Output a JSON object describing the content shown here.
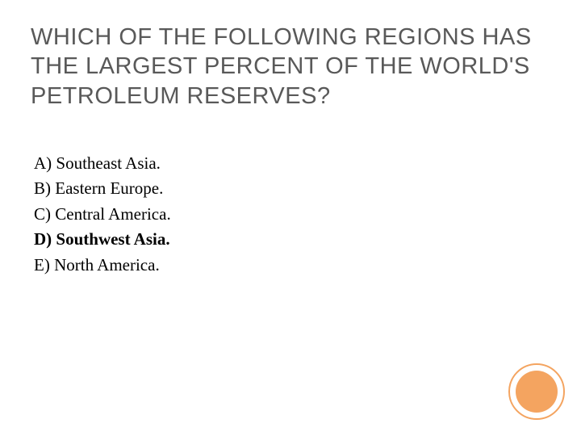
{
  "slide": {
    "title": "WHICH OF THE FOLLOWING REGIONS HAS THE LARGEST PERCENT OF THE WORLD'S PETROLEUM RESERVES?",
    "title_color": "#595959",
    "title_fontsize": 29,
    "title_font": "Century Gothic",
    "options": [
      {
        "label": "A) Southeast Asia.",
        "correct": false
      },
      {
        "label": "B) Eastern Europe.",
        "correct": false
      },
      {
        "label": "C) Central America.",
        "correct": false
      },
      {
        "label": "D) Southwest Asia.",
        "correct": true
      },
      {
        "label": "E) North America.",
        "correct": false
      }
    ],
    "option_fontsize": 21,
    "option_font": "Georgia",
    "option_color": "#000000",
    "background_color": "#ffffff",
    "decoration": {
      "outer_ring_color": "#f4a460",
      "inner_circle_color": "#f4a460",
      "outer_diameter": 70,
      "inner_diameter": 52
    }
  }
}
